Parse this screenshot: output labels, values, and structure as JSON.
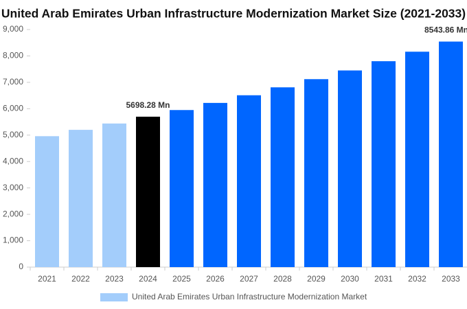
{
  "chart_data": {
    "type": "bar",
    "title": "United Arab Emirates Urban Infrastructure Modernization Market Size (2021-2033)",
    "categories": [
      "2021",
      "2022",
      "2023",
      "2024",
      "2025",
      "2026",
      "2027",
      "2028",
      "2029",
      "2030",
      "2031",
      "2032",
      "2033"
    ],
    "series": [
      {
        "name": "United Arab Emirates Urban Infrastructure Modernization Market",
        "color": "#a3cdfb",
        "values": [
          4960,
          5200,
          5440,
          5698.28,
          5950,
          6220,
          6510,
          6810,
          7120,
          7450,
          7800,
          8160,
          8543.86
        ],
        "value_labels": [
          null,
          null,
          null,
          "5698.28 Mn",
          null,
          null,
          null,
          null,
          null,
          null,
          null,
          null,
          "8543.86 Mn"
        ],
        "colors": [
          "#a3cdfb",
          "#a3cdfb",
          "#a3cdfb",
          "#000000",
          "#0066ff",
          "#0066ff",
          "#0066ff",
          "#0066ff",
          "#0066ff",
          "#0066ff",
          "#0066ff",
          "#0066ff",
          "#0066ff"
        ]
      }
    ],
    "ylim": [
      0,
      9000
    ],
    "yticks": [
      0,
      {
        "value": 1000,
        "label": "1,000"
      },
      {
        "value": 2000,
        "label": "2,000"
      },
      {
        "value": 3000,
        "label": "3,000"
      },
      {
        "value": 4000,
        "label": "4,000"
      },
      {
        "value": 5000,
        "label": "5,000"
      },
      {
        "value": 6000,
        "label": "6,000"
      },
      {
        "value": 7000,
        "label": "7,000"
      },
      {
        "value": 8000,
        "label": "8,000"
      },
      {
        "value": 9000,
        "label": "9,000"
      }
    ],
    "grid": false
  }
}
